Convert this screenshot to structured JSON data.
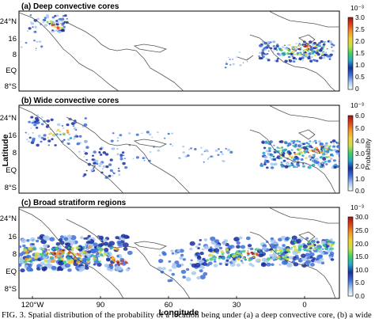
{
  "figure": {
    "ylabel": "Latitude",
    "xlabel": "Longitude",
    "lat_ticks": [
      "24°N",
      "16",
      "8",
      "EQ",
      "8°S"
    ],
    "lon_ticks": [
      "120°W",
      "90",
      "60",
      "30",
      "0"
    ],
    "caption": "FIG. 3. Spatial distribution of the probability of a location being under (a) a deep convective core, (b) a wide"
  },
  "panels": [
    {
      "title": "(a) Deep convective cores",
      "colorbar": {
        "scale": "10⁻³",
        "label": "",
        "ticks": [
          "3.0",
          "2.5",
          "2.0",
          "1.5",
          "1.0",
          "0.5",
          "0"
        ]
      }
    },
    {
      "title": "(b) Wide convective cores",
      "colorbar": {
        "scale": "10⁻³",
        "label": "Probability",
        "ticks": [
          "6.0",
          "5.0",
          "4.0",
          "3.0",
          "2.0",
          "1.0",
          "0.0"
        ]
      }
    },
    {
      "title": "(c) Broad stratiform regions",
      "colorbar": {
        "scale": "10⁻³",
        "label": "",
        "ticks": [
          "30.0",
          "25.0",
          "20.0",
          "15.0",
          "10.0",
          "5.0",
          "0.0"
        ]
      }
    }
  ],
  "colors": {
    "colormap": [
      "#ffffff",
      "#a8c8ee",
      "#3e6fd8",
      "#1a2f9e",
      "#27a9c4",
      "#3ed06a",
      "#c8e04c",
      "#f0d03a",
      "#f09a2a",
      "#e0441c",
      "#a0140e"
    ],
    "coastline": "#555555"
  }
}
